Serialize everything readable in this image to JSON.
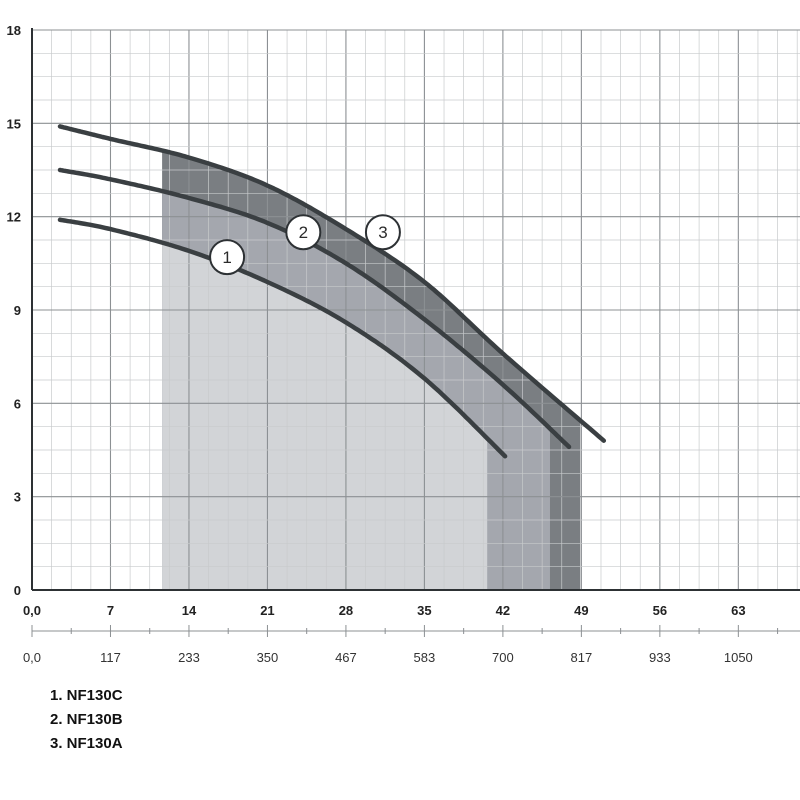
{
  "chart_data": {
    "type": "line",
    "x_axis": {
      "range": [
        0,
        68.5
      ],
      "ticks": [
        0,
        7,
        14,
        21,
        28,
        35,
        42,
        49,
        56,
        63
      ],
      "tick_labels": [
        "0,0",
        "7",
        "14",
        "21",
        "28",
        "35",
        "42",
        "49",
        "56",
        "63"
      ]
    },
    "x_axis_secondary": {
      "tick_labels": [
        "0,0",
        "117",
        "233",
        "350",
        "467",
        "583",
        "700",
        "817",
        "933",
        "1050"
      ]
    },
    "y_axis": {
      "range": [
        0,
        18
      ],
      "ticks": [
        0,
        3,
        6,
        9,
        12,
        15,
        18
      ],
      "tick_labels": [
        "0",
        "3",
        "6",
        "9",
        "12",
        "15",
        "18"
      ]
    },
    "grid": true,
    "series": [
      {
        "name": "1",
        "color": "#3a3f42",
        "x": [
          2.5,
          7,
          14,
          21,
          28,
          35,
          42.2
        ],
        "y": [
          11.9,
          11.6,
          10.9,
          9.9,
          8.6,
          6.8,
          4.3
        ]
      },
      {
        "name": "2",
        "color": "#3a3f42",
        "x": [
          2.5,
          7,
          14,
          21,
          28,
          35,
          42,
          47.9
        ],
        "y": [
          13.5,
          13.2,
          12.6,
          11.8,
          10.5,
          8.7,
          6.6,
          4.6
        ]
      },
      {
        "name": "3",
        "color": "#3a3f42",
        "x": [
          2.5,
          7,
          14,
          21,
          28,
          35,
          42,
          51
        ],
        "y": [
          14.9,
          14.5,
          13.9,
          13.0,
          11.6,
          9.9,
          7.6,
          4.8
        ]
      }
    ],
    "operating_range": {
      "x_start": 11.6,
      "band_ends": [
        40.6,
        46.2,
        48.9
      ],
      "colors": [
        "#d2d4d7",
        "#a4a7ae",
        "#7a7e82"
      ]
    },
    "markers": [
      {
        "label": "1",
        "x": 17.4,
        "y": 10.7
      },
      {
        "label": "2",
        "x": 24.2,
        "y": 11.5
      },
      {
        "label": "3",
        "x": 31.3,
        "y": 11.5
      }
    ]
  },
  "legend": {
    "entries": [
      "1. NF130C",
      "2. NF130B",
      "3. NF130A"
    ]
  }
}
